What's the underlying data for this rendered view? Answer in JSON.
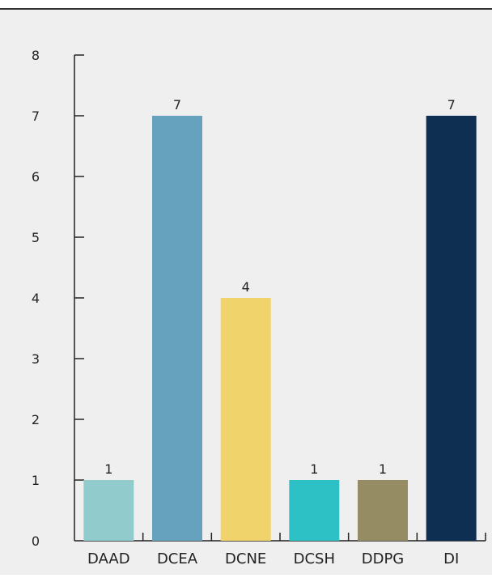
{
  "chart_data": {
    "type": "bar",
    "title": "",
    "xlabel": "",
    "ylabel": "",
    "categories": [
      "DAAD",
      "DCEA",
      "DCNE",
      "DCSH",
      "DDPG",
      "DI"
    ],
    "values": [
      1,
      7,
      4,
      1,
      1,
      7
    ],
    "data_labels": [
      "1",
      "7",
      "4",
      "1",
      "1",
      "7"
    ],
    "colors": [
      "#92CBCB",
      "#66A1BD",
      "#F0D36A",
      "#2DC1C6",
      "#958C64",
      "#0F2F52"
    ],
    "ylim": [
      0,
      8
    ],
    "yticks": [
      "0",
      "1",
      "2",
      "3",
      "4",
      "5",
      "6",
      "7",
      "8"
    ],
    "grid": false,
    "legend": "none",
    "background": "#EFEFEF",
    "top_rule_color": "#333333"
  }
}
